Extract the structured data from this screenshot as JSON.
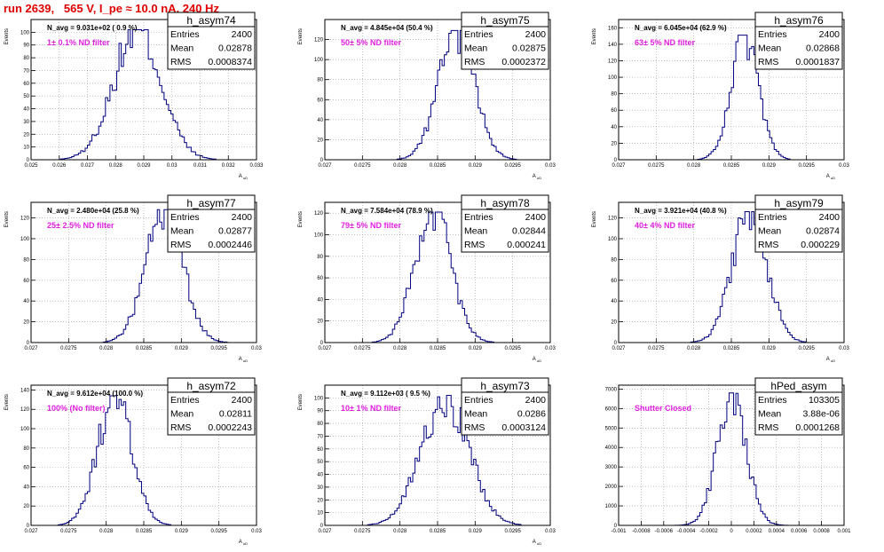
{
  "page": {
    "title": "run 2639,   565 V, I_pe ≈ 10.0 nA, 240 Hz"
  },
  "chart_data": [
    {
      "type": "histogram",
      "name": "h_asym74",
      "n_avg": "N_avg = 9.031e+02 ( 0.9 %)",
      "filter": "1± 0.1% ND filter",
      "stats": {
        "entries": "2400",
        "mean": "0.02878",
        "rms": "0.0008374"
      },
      "xlabel": "A_{uD}",
      "ylabel": "Events",
      "xlim": [
        0.025,
        0.033
      ],
      "ylim": [
        0,
        110
      ],
      "xticks": [
        "0.025",
        "0.026",
        "0.027",
        "0.028",
        "0.029",
        "0.03",
        "0.031",
        "0.032",
        "0.033"
      ],
      "yticks": [
        "0",
        "10",
        "20",
        "30",
        "40",
        "50",
        "60",
        "70",
        "80",
        "90",
        "100"
      ],
      "mu": 0.02878,
      "sigma": 0.0008374,
      "peak": 102
    },
    {
      "type": "histogram",
      "name": "h_asym75",
      "n_avg": "N_avg = 4.845e+04 (50.4 %)",
      "filter": "50± 5% ND filter",
      "stats": {
        "entries": "2400",
        "mean": "0.02875",
        "rms": "0.0002372"
      },
      "xlabel": "A_{uD}",
      "ylabel": "Events",
      "xlim": [
        0.027,
        0.03
      ],
      "ylim": [
        0,
        140
      ],
      "xticks": [
        "0.027",
        "0.0275",
        "0.028",
        "0.0285",
        "0.029",
        "0.0295",
        "0.03"
      ],
      "yticks": [
        "0",
        "20",
        "40",
        "60",
        "80",
        "100",
        "120"
      ],
      "mu": 0.02875,
      "sigma": 0.0002372,
      "peak": 129
    },
    {
      "type": "histogram",
      "name": "h_asym76",
      "n_avg": "N_avg = 6.045e+04 (62.9 %)",
      "filter": "63± 5% ND filter",
      "stats": {
        "entries": "2400",
        "mean": "0.02868",
        "rms": "0.0001837"
      },
      "xlabel": "A_{uD}",
      "ylabel": "Events",
      "xlim": [
        0.027,
        0.03
      ],
      "ylim": [
        0,
        170
      ],
      "xticks": [
        "0.027",
        "0.0275",
        "0.028",
        "0.0285",
        "0.029",
        "0.0295",
        "0.03"
      ],
      "yticks": [
        "0",
        "20",
        "40",
        "60",
        "80",
        "100",
        "120",
        "140",
        "160"
      ],
      "mu": 0.02868,
      "sigma": 0.0001837,
      "peak": 151
    },
    {
      "type": "histogram",
      "name": "h_asym77",
      "n_avg": "N_avg = 2.480e+04 (25.8 %)",
      "filter": "25± 2.5% ND filter",
      "stats": {
        "entries": "2400",
        "mean": "0.02877",
        "rms": "0.0002446"
      },
      "xlabel": "A_{uD}",
      "ylabel": "Events",
      "xlim": [
        0.027,
        0.03
      ],
      "ylim": [
        0,
        135
      ],
      "xticks": [
        "0.027",
        "0.0275",
        "0.028",
        "0.0285",
        "0.029",
        "0.0295",
        "0.03"
      ],
      "yticks": [
        "0",
        "20",
        "40",
        "60",
        "80",
        "100",
        "120"
      ],
      "mu": 0.02877,
      "sigma": 0.0002446,
      "peak": 128
    },
    {
      "type": "histogram",
      "name": "h_asym78",
      "n_avg": "N_avg = 7.584e+04 (78.9 %)",
      "filter": "79± 5% ND filter",
      "stats": {
        "entries": "2400",
        "mean": "0.02844",
        "rms": "0.000241"
      },
      "xlabel": "A_{uD}",
      "ylabel": "Events",
      "xlim": [
        0.027,
        0.03
      ],
      "ylim": [
        0,
        130
      ],
      "xticks": [
        "0.027",
        "0.0275",
        "0.028",
        "0.0285",
        "0.029",
        "0.0295",
        "0.03"
      ],
      "yticks": [
        "0",
        "20",
        "40",
        "60",
        "80",
        "100",
        "120"
      ],
      "mu": 0.02844,
      "sigma": 0.000241,
      "peak": 121
    },
    {
      "type": "histogram",
      "name": "h_asym79",
      "n_avg": "N_avg = 3.921e+04 (40.8 %)",
      "filter": "40± 4% ND filter",
      "stats": {
        "entries": "2400",
        "mean": "0.02874",
        "rms": "0.000229"
      },
      "xlabel": "A_{uD}",
      "ylabel": "Events",
      "xlim": [
        0.027,
        0.03
      ],
      "ylim": [
        0,
        135
      ],
      "xticks": [
        "0.027",
        "0.0275",
        "0.028",
        "0.0285",
        "0.029",
        "0.0295",
        "0.03"
      ],
      "yticks": [
        "0",
        "20",
        "40",
        "60",
        "80",
        "100",
        "120"
      ],
      "mu": 0.02874,
      "sigma": 0.000229,
      "peak": 126
    },
    {
      "type": "histogram",
      "name": "h_asym72",
      "n_avg": "N_avg = 9.612e+04 (100.0 %)",
      "filter": "100% (No filter)",
      "stats": {
        "entries": "2400",
        "mean": "0.02811",
        "rms": "0.0002243"
      },
      "xlabel": "A_{uD}",
      "ylabel": "Events",
      "xlim": [
        0.027,
        0.03
      ],
      "ylim": [
        0,
        145
      ],
      "xticks": [
        "0.027",
        "0.0275",
        "0.028",
        "0.0285",
        "0.029",
        "0.0295",
        "0.03"
      ],
      "yticks": [
        "0",
        "20",
        "40",
        "60",
        "80",
        "100",
        "120",
        "140"
      ],
      "mu": 0.02811,
      "sigma": 0.0002243,
      "peak": 134
    },
    {
      "type": "histogram",
      "name": "h_asym73",
      "n_avg": "N_avg = 9.112e+03 ( 9.5 %)",
      "filter": "10± 1% ND filter",
      "stats": {
        "entries": "2400",
        "mean": "0.0286",
        "rms": "0.0003124"
      },
      "xlabel": "A_{uD}",
      "ylabel": "Events",
      "xlim": [
        0.027,
        0.03
      ],
      "ylim": [
        0,
        110
      ],
      "xticks": [
        "0.027",
        "0.0275",
        "0.028",
        "0.0285",
        "0.029",
        "0.0295",
        "0.03"
      ],
      "yticks": [
        "0",
        "10",
        "20",
        "30",
        "40",
        "50",
        "60",
        "70",
        "80",
        "90",
        "100"
      ],
      "mu": 0.0286,
      "sigma": 0.0003124,
      "peak": 102
    },
    {
      "type": "histogram",
      "name": "hPed_asym",
      "n_avg": "",
      "filter": "Shutter Closed",
      "stats": {
        "entries": "103305",
        "mean": "3.88e-06",
        "rms": "0.0001268"
      },
      "xlabel": "",
      "ylabel": "",
      "xlim": [
        -0.001,
        0.001
      ],
      "ylim": [
        0,
        7200
      ],
      "xticks": [
        "-0.001",
        "-0.0008",
        "-0.0006",
        "-0.0004",
        "-0.0002",
        "0",
        "0.0002",
        "0.0004",
        "0.0006",
        "0.0008",
        "0.001"
      ],
      "yticks": [
        "0",
        "1000",
        "2000",
        "3000",
        "4000",
        "5000",
        "6000",
        "7000"
      ],
      "mu": 3.88e-06,
      "sigma": 0.0001268,
      "peak": 6800
    }
  ],
  "stat_labels": {
    "entries": "Entries",
    "mean": "Mean",
    "rms": "RMS"
  }
}
